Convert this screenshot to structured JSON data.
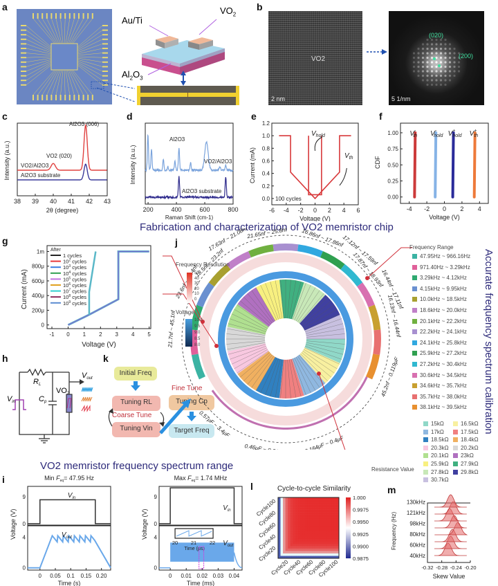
{
  "panel_labels": {
    "a": "a",
    "b": "b",
    "c": "c",
    "d": "d",
    "e": "e",
    "f": "f",
    "g": "g",
    "h": "h",
    "i": "i",
    "j": "j",
    "k": "k",
    "l": "l",
    "m": "m"
  },
  "banners": {
    "fabrication": "Fabrication and characterization of VO2 memristor chip",
    "spectrum_range": "VO2 memristor frequency spectrum range",
    "calibration": "Accurate frequency spectrum calibration"
  },
  "panel_a": {
    "label_auti": "Au/Ti",
    "label_vo2": "VO",
    "label_vo2_sub": "2",
    "label_al2o3": "Al",
    "label_al2o3_sub1": "2",
    "label_al2o3_o": "O",
    "label_al2o3_sub2": "3"
  },
  "panel_b": {
    "material": "VO2",
    "scale_left": "2 nm",
    "scale_right": "5 1/nm",
    "spot1": "(020)",
    "spot2": "(200)"
  },
  "chart_data": [
    {
      "id": "c",
      "type": "line",
      "xlabel": "2θ (degree)",
      "ylabel": "Intensity (a.u.)",
      "xlim": [
        38,
        43
      ],
      "xticks": [
        38,
        39,
        40,
        41,
        42,
        43
      ],
      "series": [
        {
          "name": "VO2/Al2O3",
          "color": "#e0403f",
          "peaks": [
            {
              "x": 40.0,
              "h": 0.15,
              "label": "VO2 (020)"
            },
            {
              "x": 41.8,
              "h": 1.0,
              "label": "Al2O3 (006)"
            }
          ]
        },
        {
          "name": "Al2O3 substrate",
          "color": "#3a3a9a",
          "peaks": [
            {
              "x": 41.8,
              "h": 0.35
            }
          ]
        }
      ]
    },
    {
      "id": "d",
      "type": "line",
      "xlabel": "Raman Shift (cm-1)",
      "ylabel": "Intensity (a.u.)",
      "xlim": [
        180,
        800
      ],
      "xticks": [
        200,
        400,
        600,
        800
      ],
      "series": [
        {
          "name": "VO2/Al2O3",
          "color": "#7aa3dc",
          "peaks": [
            199,
            224,
            308,
            340,
            390,
            418,
            500,
            612,
            706,
            748
          ],
          "label": "VO2/Al2O3"
        },
        {
          "name": "Al2O3 substrate",
          "color": "#2e2a8c",
          "peaks": [
            418,
            748
          ],
          "label": "Al2O3 substrate"
        }
      ],
      "annotations": [
        "Al2O3"
      ]
    },
    {
      "id": "e",
      "type": "line",
      "xlabel": "Voltage (V)",
      "ylabel": "Current (mA)",
      "xlim": [
        -6,
        6
      ],
      "ylim": [
        -0.1,
        1.2
      ],
      "xticks": [
        -6,
        -4,
        -2,
        0,
        2,
        4,
        6
      ],
      "yticks": [
        0.0,
        0.2,
        0.4,
        0.6,
        0.8,
        1.0,
        1.2
      ],
      "annotations": [
        "V_hold",
        "V_th",
        "100 cycles"
      ],
      "series": [
        {
          "name": "I-V",
          "color": "#d8383a",
          "points": [
            [
              -5,
              1
            ],
            [
              -3.4,
              1
            ],
            [
              -3.4,
              0.42
            ],
            [
              0,
              0
            ],
            [
              3.4,
              0.42
            ],
            [
              3.4,
              1
            ],
            [
              5,
              1
            ]
          ],
          "hold": [
            [
              -0.9,
              1
            ],
            [
              -0.9,
              0.06
            ],
            [
              0.9,
              0.06
            ],
            [
              0.9,
              1
            ]
          ]
        }
      ]
    },
    {
      "id": "f",
      "type": "scatter",
      "xlabel": "Voltage (V)",
      "ylabel": "CDF",
      "xlim": [
        -5,
        5
      ],
      "ylim": [
        -0.1,
        1.15
      ],
      "xticks": [
        -4,
        -2,
        0,
        2,
        4
      ],
      "yticks": [
        0.0,
        0.25,
        0.5,
        0.75,
        1.0
      ],
      "series": [
        {
          "name": "V_th-",
          "x": -3.4,
          "color": "#cc3a3a"
        },
        {
          "name": "V_hold-",
          "x": -1.05,
          "color": "#86b3e6"
        },
        {
          "name": "V_hold+",
          "x": 0.95,
          "color": "#2a2b9a"
        },
        {
          "name": "V_th+",
          "x": 3.4,
          "color": "#ee7a3a"
        }
      ]
    },
    {
      "id": "g",
      "type": "line",
      "xlabel": "Voltage (V)",
      "ylabel": "Current (mA)",
      "xlim": [
        -1.3,
        5.1
      ],
      "ylim": [
        -50,
        1080
      ],
      "xticks": [
        -1,
        0,
        1,
        2,
        3,
        4,
        5
      ],
      "yticks": [
        0,
        200,
        400,
        600,
        800,
        1000
      ],
      "ytick_labels": [
        "0",
        "200μ",
        "400μ",
        "600μ",
        "800μ",
        "1m"
      ],
      "legend_title": "After",
      "series": [
        {
          "name": "1 cycles",
          "color": "#222222"
        },
        {
          "name": "10^2 cycles",
          "color": "#e8383a"
        },
        {
          "name": "10^3 cycles",
          "color": "#3a7de0"
        },
        {
          "name": "10^4 cycles",
          "color": "#2fa050"
        },
        {
          "name": "10^5 cycles",
          "color": "#c070e0"
        },
        {
          "name": "10^6 cycles",
          "color": "#e0a020"
        },
        {
          "name": "10^7 cycles",
          "color": "#30d0d0"
        },
        {
          "name": "10^8 cycles",
          "color": "#8a2a5a"
        },
        {
          "name": "10^9 cycles",
          "color": "#5a8ad0"
        }
      ],
      "curve": [
        [
          0,
          0
        ],
        [
          1.3,
          140
        ],
        [
          3.1,
          350
        ],
        [
          3.1,
          1000
        ],
        [
          5,
          1000
        ]
      ],
      "return": [
        [
          1.3,
          140
        ],
        [
          1.3,
          450
        ],
        [
          1.7,
          1000
        ]
      ]
    },
    {
      "id": "i_min",
      "type": "line",
      "title": "Min F_eq= 47.95 Hz",
      "xlabel": "Time (s)",
      "ylabel": "Voltage (V)",
      "xlim": [
        -0.04,
        0.23
      ],
      "xticks": [
        0,
        0.05,
        0.1,
        0.15,
        0.2
      ],
      "xtick_labels": [
        "0",
        "0.05",
        "0.1",
        "0.15",
        "0.20"
      ],
      "yticks_top": [
        0,
        9
      ],
      "yticks_bottom": [
        0,
        4
      ],
      "series": [
        {
          "name": "V_in",
          "color": "#333333",
          "high": 8,
          "t_on": 0,
          "t_off": 0.18
        },
        {
          "name": "V_out",
          "color": "#6aa8ea",
          "peaks": 7,
          "max": 4.2
        }
      ]
    },
    {
      "id": "i_max",
      "type": "line",
      "title": "Max F_eq= 1.74 MHz",
      "xlabel": "Time (ms)",
      "ylabel": "Voltage (V)",
      "xlim": [
        -0.007,
        0.045
      ],
      "xticks": [
        0,
        0.01,
        0.02,
        0.03,
        0.04
      ],
      "xtick_labels": [
        "0",
        "0.01",
        "0.02",
        "0.03",
        "0.04"
      ],
      "yticks_top": [
        0,
        9
      ],
      "yticks_bottom": [
        0,
        4
      ],
      "inset": {
        "xlabel": "Time (μs)",
        "xticks": [
          "20",
          "21",
          "22"
        ]
      },
      "series": [
        {
          "name": "V_in",
          "color": "#333333",
          "high": 12,
          "t_on": 0,
          "t_off": 0.04
        },
        {
          "name": "V_out",
          "color": "#6aa8ea",
          "max": 3.3,
          "min": 0.8
        }
      ]
    },
    {
      "id": "l",
      "type": "heatmap",
      "title": "Cycle-to-cycle Similarity",
      "xticks": [
        "Cycle20",
        "Cycle40",
        "Cycle60",
        "Cycle80",
        "Cycle100"
      ],
      "yticks": [
        "Cycle20",
        "Cycle40",
        "Cycle60",
        "Cycle80",
        "Cycle100"
      ],
      "colorbar": {
        "min": 0.9875,
        "max": 1.0,
        "ticks": [
          "1.000",
          "0.9975",
          "0.9950",
          "0.9925",
          "0.9900",
          "0.9875"
        ]
      }
    },
    {
      "id": "m",
      "type": "area",
      "title": "",
      "xlabel": "Skew Value",
      "ylabel": "Frequency (Hz)",
      "xlim": [
        -0.32,
        -0.2
      ],
      "xticks": [
        "-0.32",
        "-0.28",
        "-0.24",
        "-0.20"
      ],
      "yticks": [
        "40kHz",
        "60kHz",
        "80kHz",
        "98kHz",
        "121kHz",
        "130kHz"
      ],
      "ridges": [
        -0.262,
        -0.255,
        -0.25,
        -0.235,
        -0.245,
        -0.258,
        -0.248,
        -0.255
      ],
      "color": "#e36a6a"
    }
  ],
  "panel_h": {
    "vin": "V",
    "vin_sub": "in",
    "rl": "R",
    "rl_sub": "L",
    "cp": "C",
    "cp_sub": "p",
    "vo2": "VO",
    "vo2_sub": "2",
    "vout": "V",
    "vout_sub": "out"
  },
  "panel_k": {
    "initial": "Initial Freq",
    "tuning_rl": "Tuning RL",
    "coarse": "Coarse Tune",
    "tuning_vin": "Tuning Vin",
    "fine": "Fine Tune",
    "tuning_cp": "Tuning Cp",
    "target": "Target Freq"
  },
  "panel_j": {
    "freq_res_title": "Frequency Resolution",
    "freq_res_ticks": [
      "50",
      "40",
      "30",
      "20",
      "10",
      "0"
    ],
    "voltage_title": "Voltage",
    "voltage_ticks": [
      "10.0",
      "9.5",
      "9.0",
      "8.5",
      "8.0"
    ],
    "freq_range_title": "Frequency Range",
    "resistance_label": "Resistance Value",
    "arc_labels": [
      "17.68nf ~ 19.64nf",
      "21.65nf ~ 25.8nf",
      "17.63nf ~ 21.08nf",
      "18.5nf ~ 23.2nf",
      "23.6nf ~ 28.4nf",
      "21.7nf ~ 45.1nf",
      "16.86nf ~ 17.86nf",
      "17.12nf ~ 17.59nf",
      "17.87nf ~ 18.93nf",
      "16.44nf ~ 17.11nf",
      "16.13nf ~ 16.44nf",
      "45.2nf ~ 0.119μF",
      "0.164μF ~ 0.4μF",
      "0.46μF ~ 0.615μF",
      "0.57μF ~ 3.4μF"
    ],
    "freq_ranges": [
      {
        "label": "47.95Hz ~ 966.16Hz",
        "color": "#3bb3a3"
      },
      {
        "label": "971.40Hz ~ 3.29kHz",
        "color": "#e0609a"
      },
      {
        "label": "3.29kHz ~ 4.12kHz",
        "color": "#2faa70"
      },
      {
        "label": "4.15kHz ~ 9.95kHz",
        "color": "#6a90d0"
      },
      {
        "label": "10.0kHz ~ 18.5kHz",
        "color": "#a8a030"
      },
      {
        "label": "18.6kHz ~ 20.0kHz",
        "color": "#c080c8"
      },
      {
        "label": "20.1kHz ~ 22.2kHz",
        "color": "#70b040"
      },
      {
        "label": "22.2kHz ~ 24.1kHz",
        "color": "#a890d0"
      },
      {
        "label": "24.1kHz ~ 25.8kHz",
        "color": "#30a8e0"
      },
      {
        "label": "25.9kHz ~ 27.2kHz",
        "color": "#30a050"
      },
      {
        "label": "27.2kHz ~ 30.4kHz",
        "color": "#30b8d0"
      },
      {
        "label": "30.6kHz ~ 34.5kHz",
        "color": "#d870b0"
      },
      {
        "label": "34.6kHz ~ 35.7kHz",
        "color": "#c8a030"
      },
      {
        "label": "35.7kHz ~ 38.0kHz",
        "color": "#e87070"
      },
      {
        "label": "38.1kHz ~ 39.5kHz",
        "color": "#e89030"
      }
    ],
    "resistances": [
      {
        "label": "15kΩ",
        "color": "#90d8c8"
      },
      {
        "label": "16.5kΩ",
        "color": "#f8f0a0"
      },
      {
        "label": "17kΩ",
        "color": "#90b8e0"
      },
      {
        "label": "17.5kΩ",
        "color": "#f08080"
      },
      {
        "label": "18.5kΩ",
        "color": "#3080c0"
      },
      {
        "label": "18.4kΩ",
        "color": "#f0b060"
      },
      {
        "label": "20.3kΩ",
        "color": "#f8c8e0"
      },
      {
        "label": "20.2kΩ",
        "color": "#d8d8d8"
      },
      {
        "label": "20.1kΩ",
        "color": "#b0e090"
      },
      {
        "label": "23kΩ",
        "color": "#b070c0"
      },
      {
        "label": "25.9kΩ",
        "color": "#f8f080"
      },
      {
        "label": "27.9kΩ",
        "color": "#40b080"
      },
      {
        "label": "27.8kΩ",
        "color": "#c8e8b8"
      },
      {
        "label": "29.8kΩ",
        "color": "#4040a0"
      },
      {
        "label": "30.7kΩ",
        "color": "#c8c0e0"
      }
    ]
  }
}
